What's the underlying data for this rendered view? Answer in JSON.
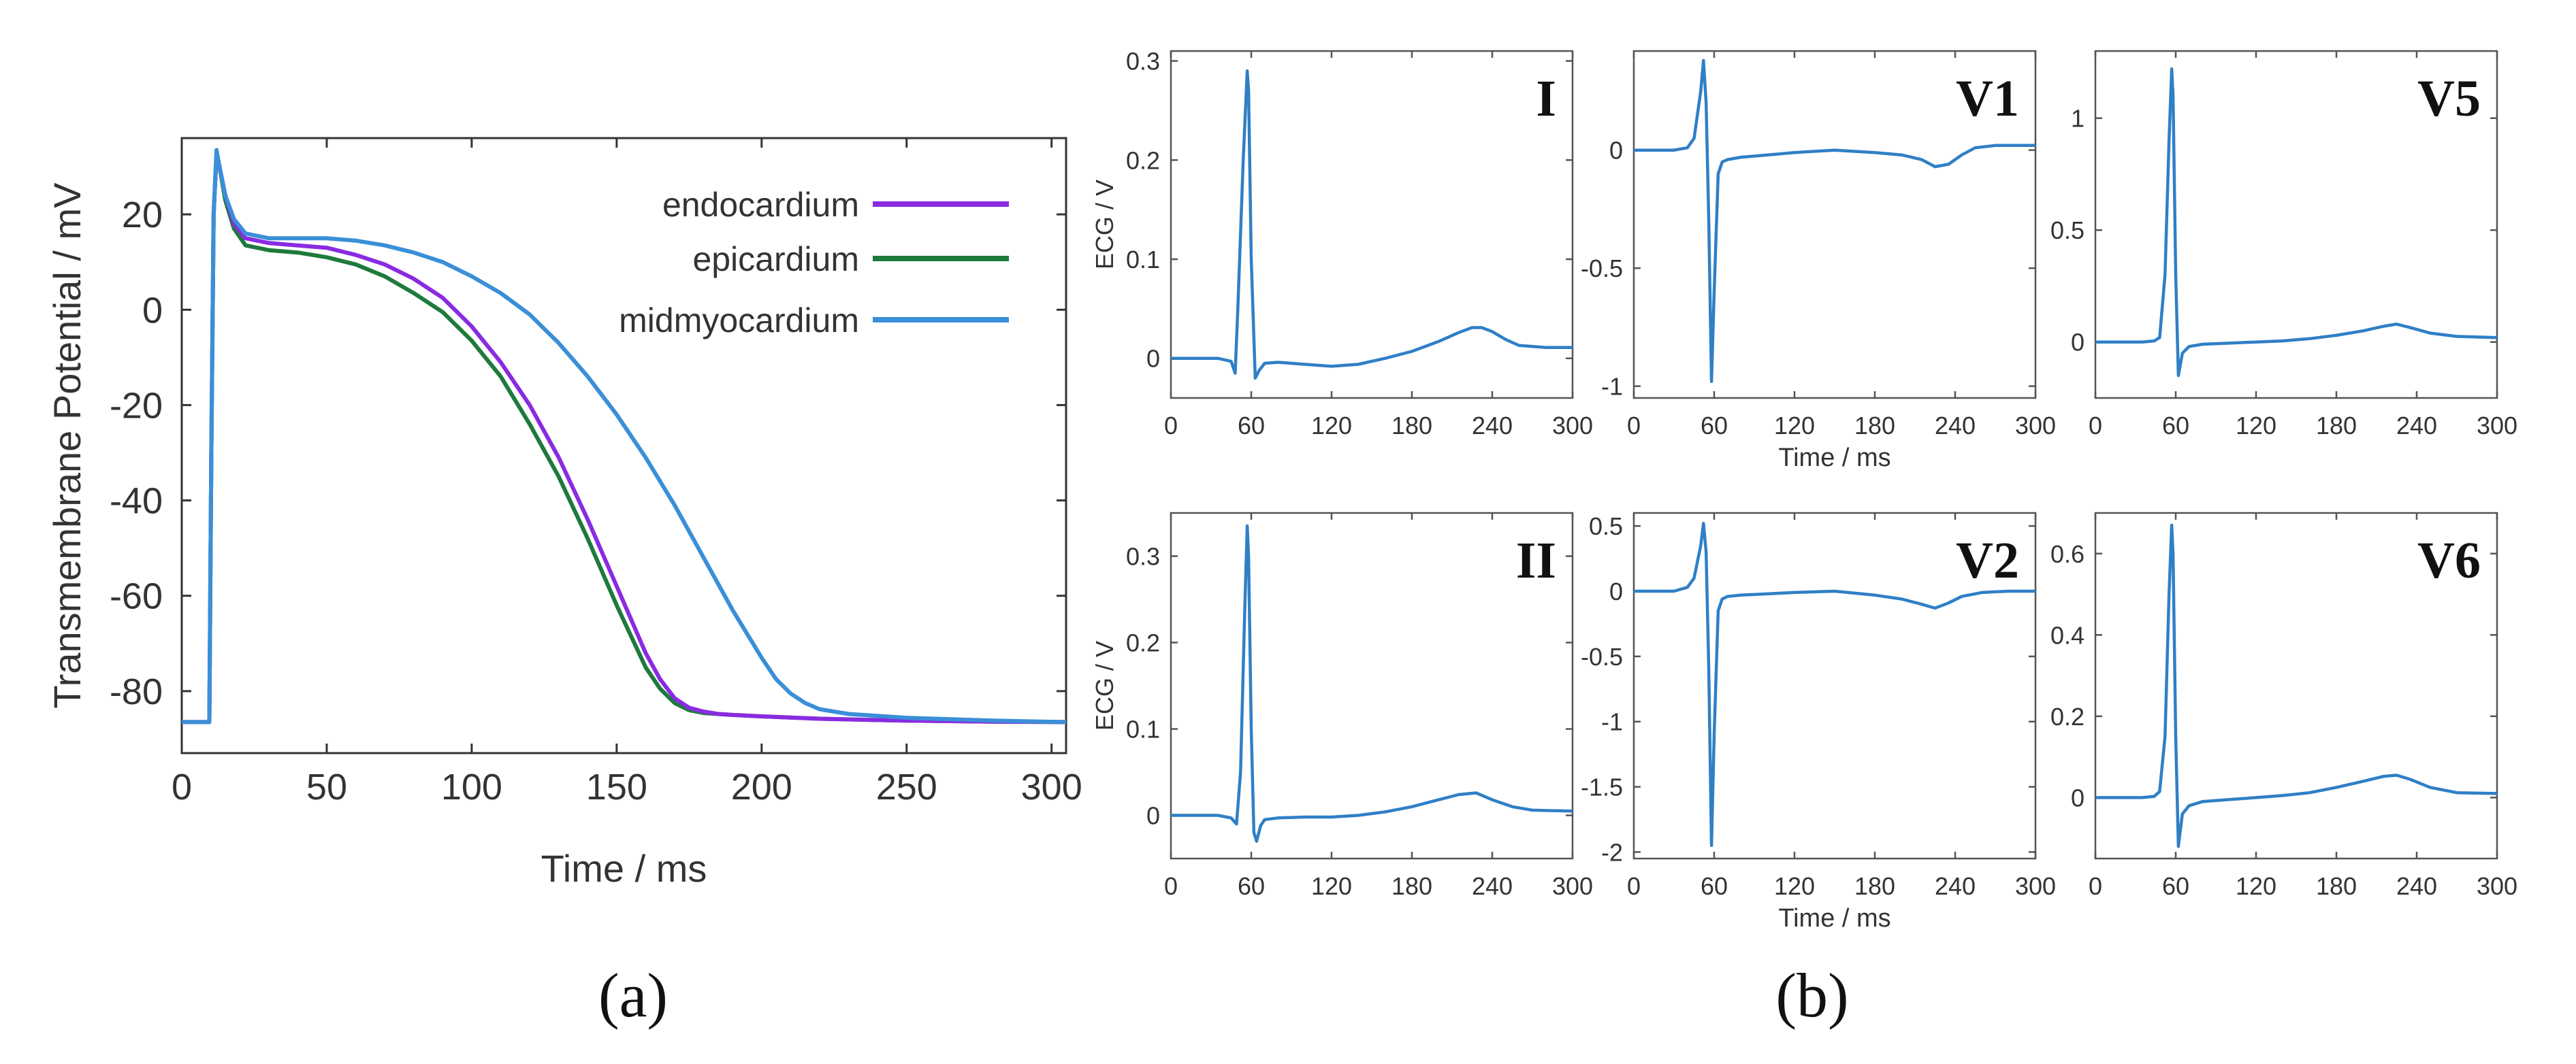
{
  "figure": {
    "panel_a_caption": "(a)",
    "panel_b_caption": "(b)"
  },
  "chart_data": [
    {
      "type": "line",
      "panel": "a",
      "xlabel": "Time / ms",
      "ylabel": "Transmembrane Potential / mV",
      "xlim": [
        0,
        305
      ],
      "ylim": [
        -93,
        36
      ],
      "xticks": [
        0,
        50,
        100,
        150,
        200,
        250,
        300
      ],
      "yticks": [
        20,
        0,
        -20,
        -40,
        -60,
        -80
      ],
      "legend_position": "top-right",
      "series": [
        {
          "name": "endocardium",
          "color": "#8a2be2",
          "x": [
            0,
            9.5,
            10.2,
            11,
            12,
            13,
            15,
            18,
            22,
            30,
            40,
            50,
            60,
            70,
            80,
            90,
            100,
            110,
            120,
            130,
            140,
            150,
            160,
            165,
            170,
            175,
            180,
            185,
            190,
            200,
            220,
            250,
            280,
            305
          ],
          "y": [
            -86.5,
            -86.5,
            -30,
            20,
            33,
            30,
            24,
            18,
            15,
            14,
            13.5,
            13,
            11.5,
            9.5,
            6.5,
            2.5,
            -3.5,
            -11,
            -20,
            -31,
            -44,
            -58,
            -72,
            -77.5,
            -81.5,
            -83.5,
            -84.3,
            -84.8,
            -85,
            -85.3,
            -85.8,
            -86.2,
            -86.4,
            -86.5
          ]
        },
        {
          "name": "epicardium",
          "color": "#1e7a3c",
          "x": [
            0,
            9.5,
            10.2,
            11,
            12,
            13,
            15,
            18,
            22,
            30,
            40,
            50,
            60,
            70,
            80,
            90,
            100,
            110,
            120,
            130,
            140,
            150,
            160,
            165,
            170,
            175,
            180,
            190,
            200,
            220,
            250,
            280,
            305
          ],
          "y": [
            -86.5,
            -86.5,
            -30,
            20,
            33,
            30,
            23,
            17,
            13.5,
            12.5,
            12,
            11,
            9.5,
            7,
            3.5,
            -0.5,
            -6.5,
            -14,
            -24,
            -35,
            -48,
            -62,
            -75,
            -79.5,
            -82.5,
            -84,
            -84.6,
            -85,
            -85.3,
            -85.8,
            -86.2,
            -86.4,
            -86.5
          ]
        },
        {
          "name": "midmyocardium",
          "color": "#3a8fd8",
          "x": [
            0,
            9.5,
            10.2,
            11,
            12,
            13,
            15,
            18,
            22,
            30,
            40,
            50,
            60,
            70,
            80,
            90,
            100,
            110,
            120,
            130,
            140,
            150,
            160,
            170,
            180,
            190,
            200,
            205,
            210,
            215,
            220,
            230,
            250,
            280,
            305
          ],
          "y": [
            -86.5,
            -86.5,
            -30,
            20,
            33.5,
            30,
            24,
            19,
            16,
            15,
            15,
            15,
            14.5,
            13.5,
            12,
            10,
            7,
            3.5,
            -1,
            -7,
            -14,
            -22,
            -31,
            -41,
            -52,
            -63,
            -73,
            -77.5,
            -80.5,
            -82.5,
            -83.8,
            -84.8,
            -85.6,
            -86.2,
            -86.5
          ]
        }
      ]
    },
    {
      "type": "line",
      "panel": "b",
      "subplots": [
        {
          "label": "I",
          "ylabel": "ECG / V",
          "xlabel": "",
          "xlim": [
            0,
            300
          ],
          "ylim": [
            -0.04,
            0.31
          ],
          "xticks": [
            0,
            60,
            120,
            180,
            240,
            300
          ],
          "yticks": [
            0,
            0.1,
            0.2,
            0.3
          ],
          "x": [
            0,
            35,
            45,
            48,
            50,
            54,
            57,
            58,
            60,
            63,
            66,
            70,
            80,
            100,
            120,
            140,
            160,
            180,
            200,
            215,
            225,
            232,
            240,
            250,
            260,
            280,
            300
          ],
          "y": [
            0,
            0,
            -0.003,
            -0.015,
            0.05,
            0.2,
            0.29,
            0.27,
            0.1,
            -0.02,
            -0.012,
            -0.005,
            -0.004,
            -0.006,
            -0.008,
            -0.006,
            0,
            0.007,
            0.017,
            0.026,
            0.031,
            0.031,
            0.027,
            0.019,
            0.013,
            0.011,
            0.011
          ]
        },
        {
          "label": "V1",
          "ylabel": "",
          "xlabel": "Time / ms",
          "xlim": [
            0,
            300
          ],
          "ylim": [
            -1.05,
            0.42
          ],
          "xticks": [
            0,
            60,
            120,
            180,
            240,
            300
          ],
          "yticks": [
            0,
            -0.5,
            -1
          ],
          "x": [
            0,
            30,
            40,
            45,
            50,
            52,
            54,
            56,
            58,
            60,
            63,
            66,
            70,
            80,
            100,
            120,
            150,
            180,
            200,
            215,
            225,
            235,
            245,
            255,
            270,
            300
          ],
          "y": [
            0,
            0,
            0.01,
            0.05,
            0.25,
            0.38,
            0.2,
            -0.3,
            -0.98,
            -0.6,
            -0.1,
            -0.05,
            -0.04,
            -0.03,
            -0.02,
            -0.01,
            0,
            -0.01,
            -0.02,
            -0.04,
            -0.07,
            -0.06,
            -0.02,
            0.01,
            0.02,
            0.02
          ]
        },
        {
          "label": "V5",
          "ylabel": "",
          "xlabel": "",
          "xlim": [
            0,
            300
          ],
          "ylim": [
            -0.25,
            1.3
          ],
          "xticks": [
            0,
            60,
            120,
            180,
            240,
            300
          ],
          "yticks": [
            0,
            0.5,
            1
          ],
          "x": [
            0,
            35,
            44,
            48,
            52,
            55,
            57,
            58,
            60,
            62,
            65,
            70,
            80,
            100,
            120,
            140,
            160,
            180,
            200,
            215,
            225,
            235,
            250,
            270,
            300
          ],
          "y": [
            0,
            0,
            0.005,
            0.02,
            0.3,
            0.9,
            1.22,
            1.1,
            0.3,
            -0.15,
            -0.05,
            -0.02,
            -0.01,
            -0.005,
            0,
            0.005,
            0.015,
            0.03,
            0.05,
            0.07,
            0.08,
            0.065,
            0.04,
            0.025,
            0.02
          ]
        },
        {
          "label": "II",
          "ylabel": "ECG / V",
          "xlabel": "",
          "xlim": [
            0,
            300
          ],
          "ylim": [
            -0.05,
            0.35
          ],
          "xticks": [
            0,
            60,
            120,
            180,
            240,
            300
          ],
          "yticks": [
            0,
            0.1,
            0.2,
            0.3
          ],
          "x": [
            0,
            35,
            45,
            49,
            52,
            55,
            57,
            58,
            60,
            62,
            64,
            67,
            70,
            80,
            100,
            120,
            140,
            160,
            180,
            200,
            215,
            228,
            240,
            255,
            270,
            300
          ],
          "y": [
            0,
            0,
            -0.003,
            -0.01,
            0.05,
            0.23,
            0.335,
            0.3,
            0.1,
            -0.02,
            -0.03,
            -0.012,
            -0.005,
            -0.003,
            -0.002,
            -0.002,
            0,
            0.004,
            0.01,
            0.018,
            0.024,
            0.026,
            0.018,
            0.01,
            0.006,
            0.005
          ]
        },
        {
          "label": "V2",
          "ylabel": "",
          "xlabel": "Time / ms",
          "xlim": [
            0,
            300
          ],
          "ylim": [
            -2.05,
            0.6
          ],
          "xticks": [
            0,
            60,
            120,
            180,
            240,
            300
          ],
          "yticks": [
            0.5,
            0,
            -0.5,
            -1,
            -1.5,
            -2
          ],
          "x": [
            0,
            30,
            40,
            45,
            50,
            52,
            54,
            56,
            58,
            60,
            63,
            66,
            70,
            80,
            100,
            120,
            150,
            180,
            200,
            215,
            225,
            235,
            245,
            260,
            280,
            300
          ],
          "y": [
            0,
            0,
            0.03,
            0.1,
            0.35,
            0.52,
            0.3,
            -0.6,
            -1.95,
            -1.1,
            -0.15,
            -0.06,
            -0.04,
            -0.03,
            -0.02,
            -0.01,
            0,
            -0.03,
            -0.06,
            -0.1,
            -0.13,
            -0.09,
            -0.04,
            -0.01,
            0,
            0
          ]
        },
        {
          "label": "V6",
          "ylabel": "",
          "xlabel": "",
          "xlim": [
            0,
            300
          ],
          "ylim": [
            -0.15,
            0.7
          ],
          "xticks": [
            0,
            60,
            120,
            180,
            240,
            300
          ],
          "yticks": [
            0,
            0.2,
            0.4,
            0.6
          ],
          "x": [
            0,
            35,
            44,
            48,
            52,
            55,
            57,
            58,
            60,
            62,
            65,
            70,
            80,
            100,
            120,
            140,
            160,
            180,
            200,
            215,
            225,
            235,
            250,
            270,
            300
          ],
          "y": [
            0,
            0,
            0.003,
            0.015,
            0.15,
            0.5,
            0.67,
            0.6,
            0.15,
            -0.12,
            -0.04,
            -0.02,
            -0.01,
            -0.005,
            0,
            0.005,
            0.012,
            0.025,
            0.04,
            0.052,
            0.055,
            0.045,
            0.025,
            0.012,
            0.01
          ]
        }
      ]
    }
  ]
}
